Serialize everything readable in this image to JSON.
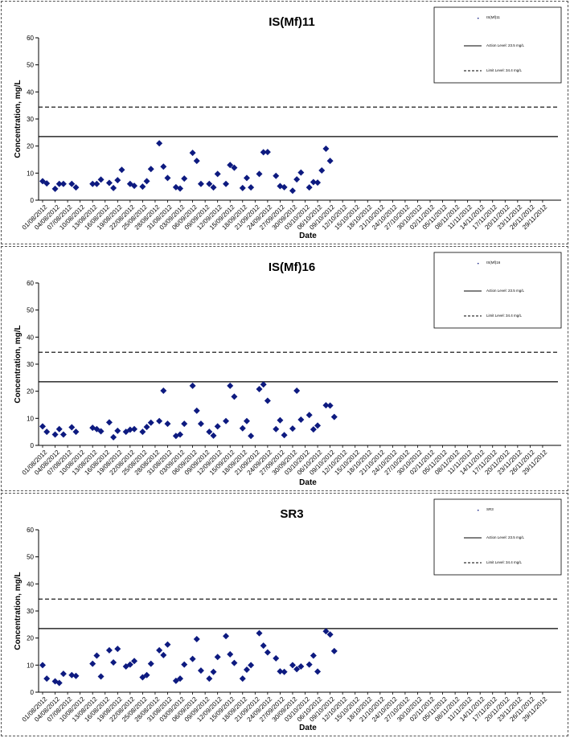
{
  "colors": {
    "marker": "#0d1a80",
    "action_line": "#000000",
    "limit_line": "#000000"
  },
  "dates": [
    "01/08/2012",
    "04/08/2012",
    "07/08/2012",
    "10/08/2012",
    "13/08/2012",
    "16/08/2012",
    "19/08/2012",
    "22/08/2012",
    "25/08/2012",
    "28/08/2012",
    "31/08/2012",
    "03/09/2012",
    "06/09/2012",
    "09/09/2012",
    "12/09/2012",
    "15/09/2012",
    "18/09/2012",
    "21/09/2012",
    "24/09/2012",
    "27/09/2012",
    "30/09/2012",
    "03/10/2012",
    "06/10/2012",
    "09/10/2012",
    "12/10/2012",
    "15/10/2012",
    "18/10/2012",
    "21/10/2012",
    "24/10/2012",
    "27/10/2012",
    "30/10/2012",
    "02/11/2012",
    "05/11/2012",
    "08/11/2012",
    "11/11/2012",
    "14/11/2012",
    "17/11/2012",
    "20/11/2012",
    "23/11/2012",
    "26/11/2012",
    "29/11/2012"
  ],
  "chart_data": [
    {
      "type": "scatter",
      "title": "IS(Mf)11",
      "xlabel": "Date",
      "ylabel": "Concentration, mg/L",
      "ylim": [
        0,
        60
      ],
      "yticks": [
        0,
        10,
        20,
        30,
        40,
        50,
        60
      ],
      "legend": {
        "position": "top-right",
        "entries": [
          "IS(Mf)11",
          "Action Level: 23.5 mg/L",
          "Limit Level: 34.4 mg/L"
        ]
      },
      "lines": [
        {
          "name": "Action Level",
          "value": 23.5,
          "style": "solid"
        },
        {
          "name": "Limit Level",
          "value": 34.4,
          "style": "dashed"
        }
      ],
      "series": [
        {
          "name": "IS(Mf)11",
          "points": [
            [
              "01/08/2012",
              7.0
            ],
            [
              "02/08/2012",
              6.2
            ],
            [
              "04/08/2012",
              4.2
            ],
            [
              "05/08/2012",
              6.0
            ],
            [
              "06/08/2012",
              6.0
            ],
            [
              "08/08/2012",
              6.0
            ],
            [
              "09/08/2012",
              4.7
            ],
            [
              "11/08/2012",
              0
            ],
            [
              "13/08/2012",
              6.0
            ],
            [
              "14/08/2012",
              6.0
            ],
            [
              "15/08/2012",
              7.6
            ],
            [
              "17/08/2012",
              6.4
            ],
            [
              "18/08/2012",
              4.5
            ],
            [
              "19/08/2012",
              7.4
            ],
            [
              "20/08/2012",
              11.2
            ],
            [
              "22/08/2012",
              6.0
            ],
            [
              "23/08/2012",
              5.3
            ],
            [
              "25/08/2012",
              5.0
            ],
            [
              "26/08/2012",
              7.0
            ],
            [
              "27/08/2012",
              11.5
            ],
            [
              "29/08/2012",
              21.0
            ],
            [
              "30/08/2012",
              12.4
            ],
            [
              "31/08/2012",
              8.2
            ],
            [
              "02/09/2012",
              4.8
            ],
            [
              "03/09/2012",
              4.3
            ],
            [
              "04/09/2012",
              8.0
            ],
            [
              "06/09/2012",
              17.5
            ],
            [
              "07/09/2012",
              14.5
            ],
            [
              "08/09/2012",
              6.0
            ],
            [
              "10/09/2012",
              6.0
            ],
            [
              "11/09/2012",
              4.7
            ],
            [
              "12/09/2012",
              9.7
            ],
            [
              "14/09/2012",
              6.0
            ],
            [
              "15/09/2012",
              13.0
            ],
            [
              "16/09/2012",
              12.0
            ],
            [
              "18/09/2012",
              4.5
            ],
            [
              "19/09/2012",
              8.2
            ],
            [
              "20/09/2012",
              4.7
            ],
            [
              "22/09/2012",
              9.7
            ],
            [
              "23/09/2012",
              17.7
            ],
            [
              "24/09/2012",
              17.8
            ],
            [
              "26/09/2012",
              9.0
            ],
            [
              "27/09/2012",
              5.2
            ],
            [
              "28/09/2012",
              4.8
            ],
            [
              "30/09/2012",
              3.5
            ],
            [
              "01/10/2012",
              7.7
            ],
            [
              "02/10/2012",
              10.2
            ],
            [
              "04/10/2012",
              4.7
            ],
            [
              "05/10/2012",
              6.7
            ],
            [
              "06/10/2012",
              6.5
            ],
            [
              "07/10/2012",
              11.0
            ],
            [
              "08/10/2012",
              19.0
            ],
            [
              "09/10/2012",
              14.5
            ]
          ]
        }
      ]
    },
    {
      "type": "scatter",
      "title": "IS(Mf)16",
      "xlabel": "Date",
      "ylabel": "Concentration, mg/L",
      "ylim": [
        0,
        60
      ],
      "yticks": [
        0,
        10,
        20,
        30,
        40,
        50,
        60
      ],
      "legend": {
        "position": "top-right",
        "entries": [
          "IS(Mf)16",
          "Action Level: 23.5 mg/L",
          "Limit Level: 34.4 mg/L"
        ]
      },
      "lines": [
        {
          "name": "Action Level",
          "value": 23.5,
          "style": "solid"
        },
        {
          "name": "Limit Level",
          "value": 34.4,
          "style": "dashed"
        }
      ],
      "series": [
        {
          "name": "IS(Mf)16",
          "points": [
            [
              "01/08/2012",
              7.0
            ],
            [
              "02/08/2012",
              5.0
            ],
            [
              "04/08/2012",
              4.0
            ],
            [
              "05/08/2012",
              6.0
            ],
            [
              "06/08/2012",
              4.0
            ],
            [
              "08/08/2012",
              6.7
            ],
            [
              "09/08/2012",
              5.0
            ],
            [
              "13/08/2012",
              6.5
            ],
            [
              "14/08/2012",
              6.0
            ],
            [
              "15/08/2012",
              5.2
            ],
            [
              "17/08/2012",
              8.5
            ],
            [
              "18/08/2012",
              3.0
            ],
            [
              "19/08/2012",
              5.4
            ],
            [
              "21/08/2012",
              5.0
            ],
            [
              "22/08/2012",
              5.8
            ],
            [
              "23/08/2012",
              6.0
            ],
            [
              "25/08/2012",
              5.0
            ],
            [
              "26/08/2012",
              6.8
            ],
            [
              "27/08/2012",
              8.4
            ],
            [
              "29/08/2012",
              9.0
            ],
            [
              "30/08/2012",
              20.2
            ],
            [
              "31/08/2012",
              8.0
            ],
            [
              "02/09/2012",
              3.5
            ],
            [
              "03/09/2012",
              4.0
            ],
            [
              "04/09/2012",
              8.0
            ],
            [
              "06/09/2012",
              22.0
            ],
            [
              "07/09/2012",
              12.8
            ],
            [
              "08/09/2012",
              8.0
            ],
            [
              "10/09/2012",
              5.0
            ],
            [
              "11/09/2012",
              3.6
            ],
            [
              "12/09/2012",
              7.0
            ],
            [
              "14/09/2012",
              9.0
            ],
            [
              "15/09/2012",
              22.0
            ],
            [
              "16/09/2012",
              18.0
            ],
            [
              "18/09/2012",
              6.3
            ],
            [
              "19/09/2012",
              9.0
            ],
            [
              "20/09/2012",
              3.5
            ],
            [
              "22/09/2012",
              20.8
            ],
            [
              "23/09/2012",
              22.5
            ],
            [
              "24/09/2012",
              16.5
            ],
            [
              "26/09/2012",
              6.0
            ],
            [
              "27/09/2012",
              9.3
            ],
            [
              "28/09/2012",
              3.8
            ],
            [
              "30/09/2012",
              6.2
            ],
            [
              "01/10/2012",
              20.2
            ],
            [
              "02/10/2012",
              9.5
            ],
            [
              "04/10/2012",
              11.2
            ],
            [
              "05/10/2012",
              5.9
            ],
            [
              "06/10/2012",
              7.3
            ],
            [
              "08/10/2012",
              14.8
            ],
            [
              "09/10/2012",
              14.7
            ],
            [
              "10/10/2012",
              10.5
            ]
          ]
        }
      ]
    },
    {
      "type": "scatter",
      "title": "SR3",
      "xlabel": "Date",
      "ylabel": "Concentration, mg/L",
      "ylim": [
        0,
        60
      ],
      "yticks": [
        0,
        10,
        20,
        30,
        40,
        50,
        60
      ],
      "legend": {
        "position": "top-right",
        "entries": [
          "SR3",
          "Action Level: 23.5 mg/L",
          "Limit Level: 34.4 mg/L"
        ]
      },
      "lines": [
        {
          "name": "Action Level",
          "value": 23.5,
          "style": "solid"
        },
        {
          "name": "Limit Level",
          "value": 34.4,
          "style": "dashed"
        }
      ],
      "series": [
        {
          "name": "SR3",
          "points": [
            [
              "01/08/2012",
              10.0
            ],
            [
              "02/08/2012",
              5.0
            ],
            [
              "04/08/2012",
              4.0
            ],
            [
              "05/08/2012",
              3.4
            ],
            [
              "06/08/2012",
              6.8
            ],
            [
              "08/08/2012",
              6.3
            ],
            [
              "09/08/2012",
              6.0
            ],
            [
              "13/08/2012",
              10.5
            ],
            [
              "14/08/2012",
              13.5
            ],
            [
              "15/08/2012",
              5.8
            ],
            [
              "17/08/2012",
              15.5
            ],
            [
              "18/08/2012",
              11.0
            ],
            [
              "19/08/2012",
              16.0
            ],
            [
              "21/08/2012",
              9.5
            ],
            [
              "22/08/2012",
              10.2
            ],
            [
              "23/08/2012",
              11.5
            ],
            [
              "25/08/2012",
              5.5
            ],
            [
              "26/08/2012",
              6.3
            ],
            [
              "27/08/2012",
              10.5
            ],
            [
              "29/08/2012",
              15.5
            ],
            [
              "30/08/2012",
              13.7
            ],
            [
              "31/08/2012",
              17.6
            ],
            [
              "02/09/2012",
              4.2
            ],
            [
              "03/09/2012",
              5.0
            ],
            [
              "04/09/2012",
              10.2
            ],
            [
              "06/09/2012",
              12.3
            ],
            [
              "07/09/2012",
              19.6
            ],
            [
              "08/09/2012",
              8.0
            ],
            [
              "10/09/2012",
              5.0
            ],
            [
              "11/09/2012",
              7.5
            ],
            [
              "12/09/2012",
              13.0
            ],
            [
              "14/09/2012",
              20.7
            ],
            [
              "15/09/2012",
              14.0
            ],
            [
              "16/09/2012",
              10.8
            ],
            [
              "18/09/2012",
              5.0
            ],
            [
              "19/09/2012",
              8.3
            ],
            [
              "20/09/2012",
              10.0
            ],
            [
              "22/09/2012",
              21.8
            ],
            [
              "23/09/2012",
              17.2
            ],
            [
              "24/09/2012",
              14.7
            ],
            [
              "26/09/2012",
              12.5
            ],
            [
              "27/09/2012",
              7.7
            ],
            [
              "28/09/2012",
              7.5
            ],
            [
              "30/09/2012",
              10.0
            ],
            [
              "01/10/2012",
              8.5
            ],
            [
              "02/10/2012",
              9.5
            ],
            [
              "04/10/2012",
              10.2
            ],
            [
              "05/10/2012",
              13.5
            ],
            [
              "06/10/2012",
              7.6
            ],
            [
              "08/10/2012",
              22.5
            ],
            [
              "09/10/2012",
              21.3
            ],
            [
              "10/10/2012",
              15.2
            ]
          ]
        }
      ]
    }
  ]
}
